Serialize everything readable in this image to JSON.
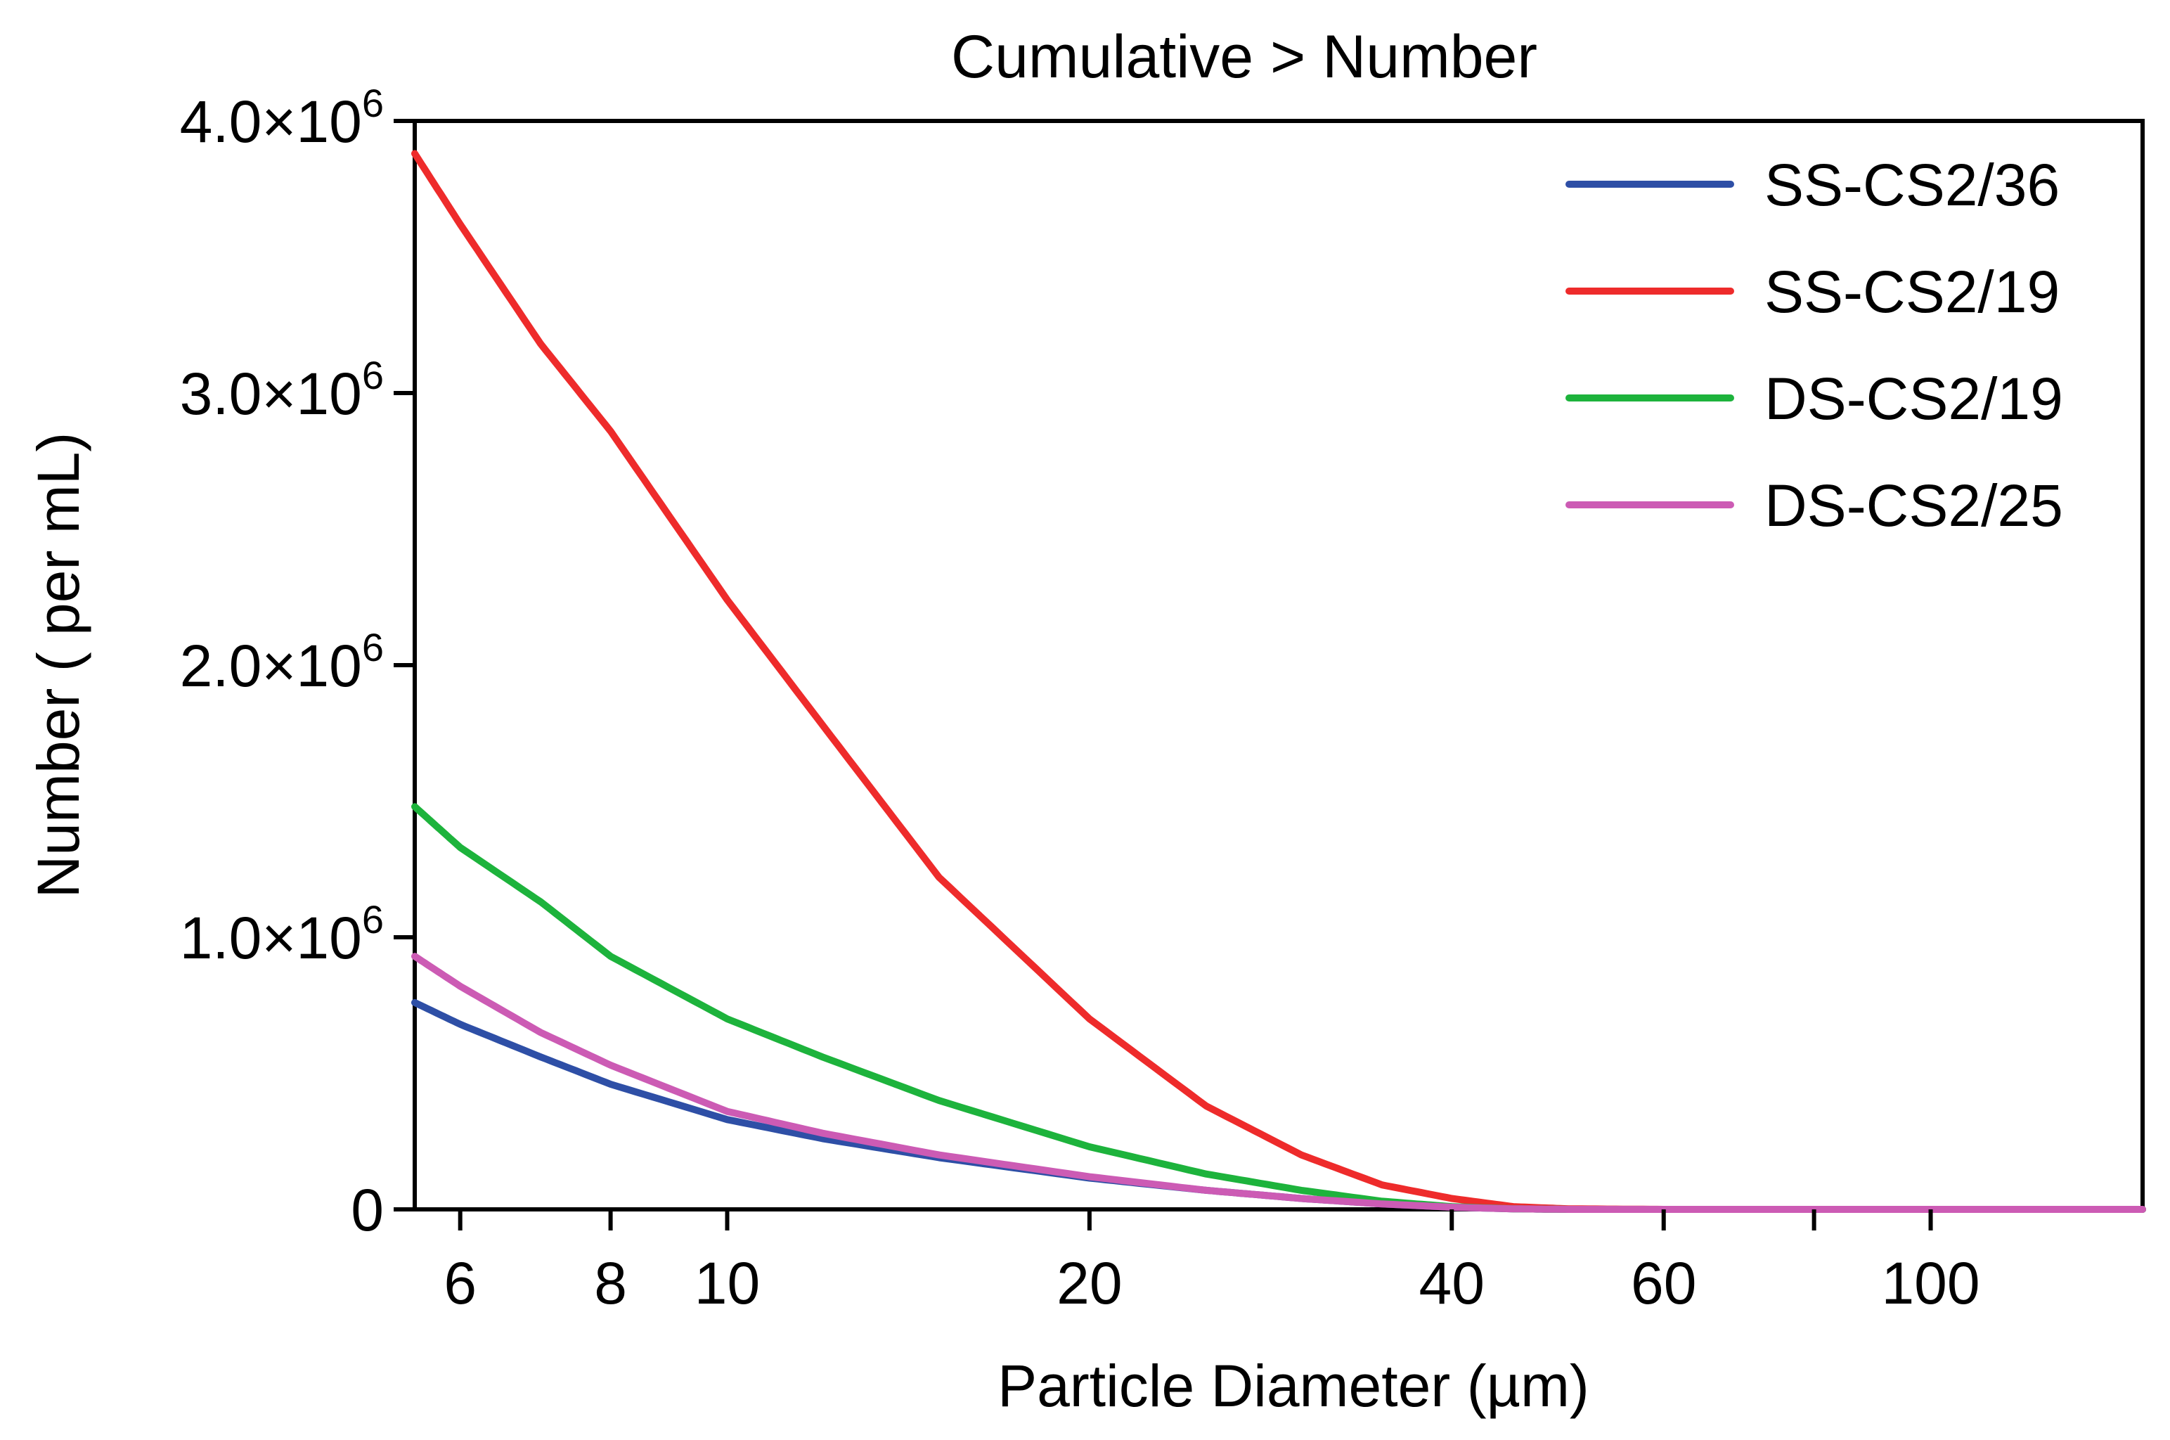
{
  "chart_data": {
    "type": "line",
    "title": "Cumulative > Number",
    "xlabel": "Particle Diameter (µm)",
    "ylabel": "Number ( per mL)",
    "x_scale": "log",
    "xlim": [
      5.5,
      150
    ],
    "ylim": [
      0,
      4000000
    ],
    "x_ticks": [
      {
        "value": 6,
        "label": "6"
      },
      {
        "value": 8,
        "label": "8"
      },
      {
        "value": 10,
        "label": "10"
      },
      {
        "value": 20,
        "label": "20"
      },
      {
        "value": 40,
        "label": "40"
      },
      {
        "value": 60,
        "label": "60"
      },
      {
        "value": 80,
        "label": ""
      },
      {
        "value": 100,
        "label": "100"
      }
    ],
    "y_ticks": [
      {
        "value": 0,
        "mantissa": "0",
        "exp": ""
      },
      {
        "value": 1000000,
        "mantissa": "1.0×10",
        "exp": "6"
      },
      {
        "value": 2000000,
        "mantissa": "2.0×10",
        "exp": "6"
      },
      {
        "value": 3000000,
        "mantissa": "3.0×10",
        "exp": "6"
      },
      {
        "value": 4000000,
        "mantissa": "4.0×10",
        "exp": "6"
      }
    ],
    "grid": false,
    "legend_position": "top-right",
    "x": [
      5.5,
      6,
      7,
      8,
      10,
      12,
      15,
      20,
      25,
      30,
      35,
      40,
      45,
      50,
      60,
      80,
      100,
      150
    ],
    "series": [
      {
        "name": "SS-CS2/36",
        "color": "#2E4FA6",
        "values": [
          760000,
          680000,
          560000,
          460000,
          330000,
          260000,
          190000,
          115000,
          70000,
          40000,
          20000,
          8000,
          2000,
          0,
          0,
          0,
          0,
          0
        ]
      },
      {
        "name": "SS-CS2/19",
        "color": "#EE2B2B",
        "values": [
          3880000,
          3620000,
          3180000,
          2860000,
          2240000,
          1780000,
          1220000,
          700000,
          380000,
          200000,
          90000,
          40000,
          10000,
          2000,
          0,
          0,
          0,
          0
        ]
      },
      {
        "name": "DS-CS2/19",
        "color": "#1DB33C",
        "values": [
          1480000,
          1330000,
          1130000,
          930000,
          700000,
          560000,
          400000,
          230000,
          130000,
          70000,
          30000,
          10000,
          2000,
          0,
          0,
          0,
          0,
          0
        ]
      },
      {
        "name": "DS-CS2/25",
        "color": "#CC5BB4",
        "values": [
          930000,
          820000,
          650000,
          530000,
          360000,
          280000,
          200000,
          120000,
          70000,
          40000,
          20000,
          8000,
          2000,
          0,
          0,
          0,
          0,
          0
        ]
      }
    ]
  }
}
